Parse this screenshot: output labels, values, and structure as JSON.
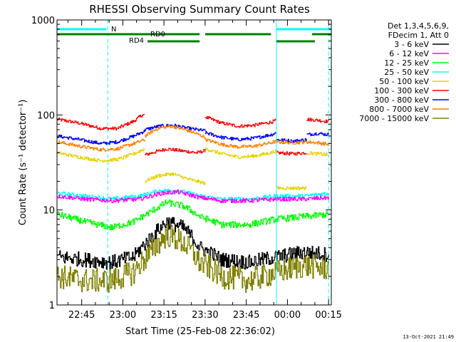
{
  "chart_data": {
    "type": "line",
    "title": "RHESSI Observing Summary Count Rates",
    "xlabel": "Start Time (25-Feb-08 22:36:02)",
    "ylabel": "Count Rate (s⁻¹ detector⁻¹)",
    "y_scale": "log",
    "ylim": [
      1,
      1000
    ],
    "xlim_minutes": [
      0,
      100
    ],
    "x_ticks": [
      {
        "label": "22:45",
        "t": 9
      },
      {
        "label": "23:00",
        "t": 24
      },
      {
        "label": "23:15",
        "t": 39
      },
      {
        "label": "23:30",
        "t": 54
      },
      {
        "label": "23:45",
        "t": 69
      },
      {
        "label": "00:00",
        "t": 84
      },
      {
        "label": "00:15",
        "t": 99
      }
    ],
    "y_ticks": [
      {
        "label": "1",
        "v": 1
      },
      {
        "label": "10",
        "v": 10
      },
      {
        "label": "100",
        "v": 100
      },
      {
        "label": "1000",
        "v": 1000
      }
    ],
    "legend": {
      "position": "right",
      "header": [
        "Det 1,3,4,5,6,9,",
        "FDecim 1, Att 0"
      ],
      "entries": [
        {
          "label": "3 - 6 keV",
          "color": "#000000"
        },
        {
          "label": "6 - 12 keV",
          "color": "#ff00ff"
        },
        {
          "label": "12 - 25 keV",
          "color": "#00ff00"
        },
        {
          "label": "25 - 50 keV",
          "color": "#00ffff"
        },
        {
          "label": "50 - 100 keV",
          "color": "#e6d200"
        },
        {
          "label": "100 - 300 keV",
          "color": "#ff0000"
        },
        {
          "label": "300 - 800 keV",
          "color": "#0000ff"
        },
        {
          "label": "800 - 7000 keV",
          "color": "#ff8000"
        },
        {
          "label": "7000 - 15000 keV",
          "color": "#808000"
        }
      ]
    },
    "flags": [
      {
        "label": "N",
        "color": "#00ffff",
        "segments": [
          [
            0,
            18
          ],
          [
            80,
            100
          ]
        ]
      },
      {
        "label": "RD0",
        "color": "#008000",
        "segments": [
          [
            0,
            52
          ],
          [
            54,
            78
          ],
          [
            93,
            100
          ]
        ]
      },
      {
        "label": "RD4",
        "color": "#008000",
        "segments": [
          [
            33,
            52
          ],
          [
            80,
            94
          ]
        ]
      }
    ],
    "vlines": [
      {
        "t": 18.5,
        "color": "#00ffff",
        "style": "dashed"
      },
      {
        "t": 80,
        "color": "#00ffff",
        "style": "solid"
      },
      {
        "t": 99,
        "color": "#00ffff",
        "style": "dashed"
      }
    ],
    "series": [
      {
        "name": "100 - 300 keV",
        "color": "#ff0000",
        "segments": [
          {
            "t": [
              0,
              8,
              16,
              22,
              28,
              31,
              32
            ],
            "y": [
              90,
              82,
              72,
              72,
              86,
              100,
              100
            ]
          },
          {
            "t": [
              32,
              36,
              40,
              45,
              51,
              54
            ],
            "y": [
              38,
              41,
              44,
              42,
              40,
              42
            ]
          },
          {
            "t": [
              54,
              60,
              66,
              72,
              78,
              80
            ],
            "y": [
              95,
              82,
              76,
              78,
              84,
              88
            ]
          },
          {
            "t": [
              80,
              86,
              91
            ],
            "y": [
              40,
              39,
              40
            ]
          },
          {
            "t": [
              91,
              95,
              99
            ],
            "y": [
              90,
              88,
              85
            ]
          }
        ]
      },
      {
        "name": "300 - 800 keV",
        "color": "#0000ff",
        "segments": [
          {
            "t": [
              0,
              8,
              16,
              22,
              28,
              32
            ],
            "y": [
              60,
              55,
              50,
              52,
              60,
              68
            ]
          },
          {
            "t": [
              32,
              37,
              42,
              48,
              54
            ],
            "y": [
              70,
              76,
              78,
              72,
              68
            ]
          },
          {
            "t": [
              54,
              60,
              66,
              72,
              78,
              80
            ],
            "y": [
              65,
              58,
              55,
              57,
              62,
              65
            ]
          },
          {
            "t": [
              80,
              86,
              91
            ],
            "y": [
              55,
              53,
              55
            ]
          },
          {
            "t": [
              91,
              95,
              99
            ],
            "y": [
              62,
              64,
              62
            ]
          }
        ]
      },
      {
        "name": "800 - 7000 keV",
        "color": "#ff8000",
        "segments": [
          {
            "t": [
              0,
              8,
              16,
              22,
              28,
              32
            ],
            "y": [
              52,
              47,
              43,
              44,
              50,
              55
            ]
          },
          {
            "t": [
              32,
              37,
              42,
              48,
              54
            ],
            "y": [
              60,
              73,
              76,
              68,
              58
            ]
          },
          {
            "t": [
              54,
              60,
              66,
              72,
              78,
              80
            ],
            "y": [
              55,
              49,
              46,
              47,
              51,
              53
            ]
          },
          {
            "t": [
              80,
              86,
              91
            ],
            "y": [
              52,
              51,
              52
            ]
          },
          {
            "t": [
              91,
              95,
              99
            ],
            "y": [
              52,
              51,
              49
            ]
          }
        ]
      },
      {
        "name": "50 - 100 keV",
        "color": "#e6d200",
        "segments": [
          {
            "t": [
              0,
              8,
              16,
              22,
              28,
              32
            ],
            "y": [
              40,
              36,
              33,
              34,
              39,
              44
            ]
          },
          {
            "t": [
              32,
              37,
              42,
              48,
              54
            ],
            "y": [
              20,
              23,
              24,
              21,
              19
            ]
          },
          {
            "t": [
              54,
              60,
              66,
              72,
              78,
              80
            ],
            "y": [
              44,
              39,
              36,
              37,
              40,
              42
            ]
          },
          {
            "t": [
              80,
              86,
              91
            ],
            "y": [
              17,
              17,
              17
            ]
          },
          {
            "t": [
              91,
              95,
              99
            ],
            "y": [
              40,
              39,
              38
            ]
          }
        ]
      },
      {
        "name": "25 - 50 keV",
        "color": "#00ffff",
        "segments": [
          {
            "t": [
              0,
              10,
              20,
              30,
              38,
              44,
              52,
              60,
              70,
              80,
              90,
              99
            ],
            "y": [
              15,
              14,
              13,
              14,
              16,
              16,
              14,
              13,
              13,
              14,
              14,
              15
            ]
          }
        ]
      },
      {
        "name": "6 - 12 keV",
        "color": "#ff00ff",
        "segments": [
          {
            "t": [
              0,
              10,
              20,
              30,
              38,
              44,
              52,
              60,
              70,
              80,
              90,
              99
            ],
            "y": [
              14,
              13,
              12.5,
              13,
              15,
              15.5,
              13.5,
              12.5,
              12.5,
              13,
              13,
              13.5
            ]
          }
        ]
      },
      {
        "name": "12 - 25 keV",
        "color": "#00ff00",
        "segments": [
          {
            "t": [
              0,
              10,
              20,
              28,
              34,
              40,
              46,
              52,
              60,
              70,
              80,
              90,
              99
            ],
            "y": [
              9,
              7.5,
              6.5,
              7.5,
              9.5,
              12,
              11,
              8.5,
              7,
              7,
              8,
              8.5,
              9
            ]
          }
        ]
      },
      {
        "name": "3 - 6 keV",
        "color": "#000000",
        "segments": [
          {
            "t": [
              0,
              10,
              20,
              28,
              34,
              40,
              46,
              52,
              60,
              70,
              80,
              90,
              99
            ],
            "y": [
              3.2,
              3,
              2.8,
              3.2,
              5,
              7.5,
              6.5,
              4,
              3,
              2.8,
              3.2,
              3.6,
              3.4
            ]
          }
        ]
      },
      {
        "name": "7000 - 15000 keV",
        "color": "#808000",
        "segments": [
          {
            "t": [
              0,
              10,
              20,
              28,
              34,
              40,
              46,
              52,
              60,
              70,
              80,
              90,
              99
            ],
            "y": [
              2,
              1.8,
              1.8,
              2.2,
              3.5,
              5.5,
              4.5,
              2.8,
              2,
              1.8,
              2.2,
              2.6,
              2.4
            ]
          }
        ]
      }
    ]
  },
  "footer": {
    "timestamp": "13-Oct-2021 21:49"
  }
}
